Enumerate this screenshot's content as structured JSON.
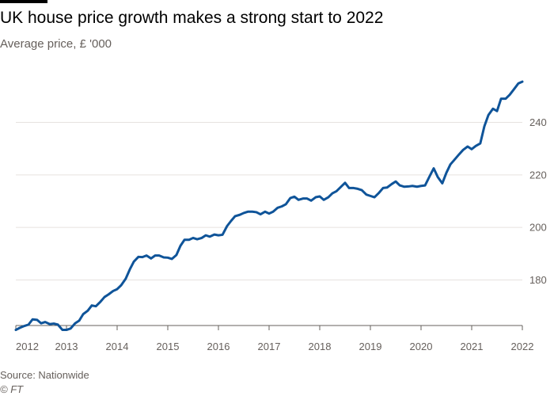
{
  "chart_data": {
    "type": "line",
    "title": "UK house price growth makes a strong start to 2022",
    "subtitle": "Average price, £ '000",
    "xlabel": "",
    "ylabel": "",
    "xlim": [
      2012,
      2022.2
    ],
    "ylim": [
      162,
      260
    ],
    "grid": true,
    "x_ticks": [
      "2012",
      "2013",
      "2014",
      "2015",
      "2016",
      "2017",
      "2018",
      "2019",
      "2020",
      "2021",
      "2022"
    ],
    "y_ticks": [
      "180",
      "200",
      "220",
      "240"
    ],
    "series": [
      {
        "name": "",
        "color": "#0f5499",
        "points": [
          [
            2012.0,
            161.0
          ],
          [
            2012.08,
            161.8
          ],
          [
            2012.17,
            162.5
          ],
          [
            2012.25,
            163.0
          ],
          [
            2012.33,
            165.0
          ],
          [
            2012.42,
            164.8
          ],
          [
            2012.5,
            163.5
          ],
          [
            2012.58,
            164.0
          ],
          [
            2012.67,
            163.2
          ],
          [
            2012.75,
            163.4
          ],
          [
            2012.83,
            163.0
          ],
          [
            2012.92,
            161.0
          ],
          [
            2013.0,
            161.0
          ],
          [
            2013.08,
            161.5
          ],
          [
            2013.17,
            163.5
          ],
          [
            2013.25,
            164.5
          ],
          [
            2013.33,
            167.0
          ],
          [
            2013.42,
            168.3
          ],
          [
            2013.5,
            170.3
          ],
          [
            2013.58,
            170.0
          ],
          [
            2013.67,
            171.7
          ],
          [
            2013.75,
            173.5
          ],
          [
            2013.83,
            174.5
          ],
          [
            2013.92,
            175.8
          ],
          [
            2014.0,
            176.5
          ],
          [
            2014.08,
            178.0
          ],
          [
            2014.17,
            180.5
          ],
          [
            2014.25,
            184.0
          ],
          [
            2014.33,
            187.0
          ],
          [
            2014.42,
            188.8
          ],
          [
            2014.5,
            188.7
          ],
          [
            2014.58,
            189.3
          ],
          [
            2014.67,
            188.2
          ],
          [
            2014.75,
            189.3
          ],
          [
            2014.83,
            189.3
          ],
          [
            2014.92,
            188.6
          ],
          [
            2015.0,
            188.5
          ],
          [
            2015.08,
            188.0
          ],
          [
            2015.17,
            189.5
          ],
          [
            2015.25,
            193.0
          ],
          [
            2015.33,
            195.3
          ],
          [
            2015.42,
            195.3
          ],
          [
            2015.5,
            196.0
          ],
          [
            2015.58,
            195.5
          ],
          [
            2015.67,
            196.0
          ],
          [
            2015.75,
            197.0
          ],
          [
            2015.83,
            196.5
          ],
          [
            2015.92,
            197.3
          ],
          [
            2016.0,
            197.0
          ],
          [
            2016.08,
            197.2
          ],
          [
            2016.17,
            200.5
          ],
          [
            2016.25,
            202.5
          ],
          [
            2016.33,
            204.3
          ],
          [
            2016.42,
            204.8
          ],
          [
            2016.5,
            205.5
          ],
          [
            2016.58,
            206.0
          ],
          [
            2016.67,
            206.0
          ],
          [
            2016.75,
            205.8
          ],
          [
            2016.83,
            205.0
          ],
          [
            2016.92,
            206.0
          ],
          [
            2017.0,
            205.3
          ],
          [
            2017.08,
            206.0
          ],
          [
            2017.17,
            207.5
          ],
          [
            2017.25,
            208.0
          ],
          [
            2017.33,
            208.8
          ],
          [
            2017.42,
            211.2
          ],
          [
            2017.5,
            211.7
          ],
          [
            2017.58,
            210.5
          ],
          [
            2017.67,
            211.0
          ],
          [
            2017.75,
            211.0
          ],
          [
            2017.83,
            210.2
          ],
          [
            2017.92,
            211.5
          ],
          [
            2018.0,
            211.8
          ],
          [
            2018.08,
            210.5
          ],
          [
            2018.17,
            211.5
          ],
          [
            2018.25,
            213.0
          ],
          [
            2018.33,
            213.8
          ],
          [
            2018.42,
            215.5
          ],
          [
            2018.5,
            217.0
          ],
          [
            2018.58,
            215.0
          ],
          [
            2018.67,
            215.0
          ],
          [
            2018.75,
            214.7
          ],
          [
            2018.83,
            214.2
          ],
          [
            2018.92,
            212.5
          ],
          [
            2019.0,
            212.0
          ],
          [
            2019.08,
            211.5
          ],
          [
            2019.17,
            213.2
          ],
          [
            2019.25,
            215.0
          ],
          [
            2019.33,
            215.2
          ],
          [
            2019.42,
            216.5
          ],
          [
            2019.5,
            217.5
          ],
          [
            2019.58,
            216.0
          ],
          [
            2019.67,
            215.5
          ],
          [
            2019.75,
            215.6
          ],
          [
            2019.83,
            215.8
          ],
          [
            2019.92,
            215.5
          ],
          [
            2020.0,
            215.8
          ],
          [
            2020.08,
            216.0
          ],
          [
            2020.17,
            219.5
          ],
          [
            2020.25,
            222.5
          ],
          [
            2020.33,
            219.2
          ],
          [
            2020.42,
            216.8
          ],
          [
            2020.5,
            220.8
          ],
          [
            2020.58,
            224.0
          ],
          [
            2020.67,
            226.0
          ],
          [
            2020.75,
            227.8
          ],
          [
            2020.83,
            229.5
          ],
          [
            2020.92,
            230.8
          ],
          [
            2021.0,
            229.8
          ],
          [
            2021.08,
            231.0
          ],
          [
            2021.17,
            232.0
          ],
          [
            2021.25,
            238.5
          ],
          [
            2021.33,
            242.8
          ],
          [
            2021.42,
            245.2
          ],
          [
            2021.5,
            244.3
          ],
          [
            2021.58,
            249.0
          ],
          [
            2021.67,
            249.0
          ],
          [
            2021.75,
            250.5
          ],
          [
            2021.83,
            252.5
          ],
          [
            2021.92,
            254.8
          ],
          [
            2022.0,
            255.5
          ]
        ]
      }
    ],
    "source": "Source: Nationwide",
    "copyright": "© FT"
  }
}
